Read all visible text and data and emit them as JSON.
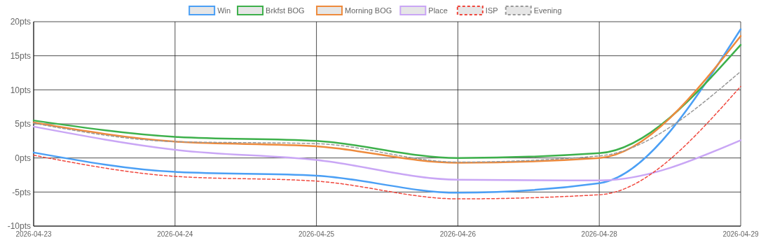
{
  "chart_data": {
    "type": "line",
    "categories": [
      "2026-04-23",
      "2026-04-24",
      "2026-04-25",
      "2026-04-26",
      "2026-04-28",
      "2026-04-29"
    ],
    "series": [
      {
        "name": "Win",
        "color": "#4a9ff5",
        "values": [
          0.8,
          -2.05,
          -2.6,
          -5.1,
          -3.7,
          18.9
        ]
      },
      {
        "name": "Brkfst BOG",
        "color": "#3db04b",
        "values": [
          5.5,
          3.1,
          2.5,
          0,
          0.7,
          16.6
        ]
      },
      {
        "name": "Morning BOG",
        "color": "#ee8a3c",
        "values": [
          5.2,
          2.4,
          1.7,
          -0.7,
          0,
          17.9
        ]
      },
      {
        "name": "Place",
        "color": "#c9a6f5",
        "values": [
          4.6,
          1.2,
          -0.3,
          -3.2,
          -3.3,
          2.6
        ]
      },
      {
        "name": "ISP",
        "color": "#f0483e",
        "line_style": "dashed",
        "values": [
          0.4,
          -2.7,
          -3.4,
          -6.0,
          -5.4,
          10.5
        ]
      },
      {
        "name": "Evening",
        "color": "#999999",
        "line_style": "dashed",
        "values": [
          5.1,
          2.4,
          2.1,
          -0.6,
          0.3,
          12.7
        ]
      }
    ],
    "ylim": [
      -10,
      20
    ],
    "yticks": [
      {
        "value": -10,
        "label": "-10pts"
      },
      {
        "value": -5,
        "label": "-5pts"
      },
      {
        "value": 0,
        "label": "0pts"
      },
      {
        "value": 5,
        "label": "5pts"
      },
      {
        "value": 10,
        "label": "10pts"
      },
      {
        "value": 15,
        "label": "15pts"
      },
      {
        "value": 20,
        "label": "20pts"
      }
    ],
    "grid": true,
    "legend": "top",
    "marker": "none",
    "line_style": "solid"
  }
}
